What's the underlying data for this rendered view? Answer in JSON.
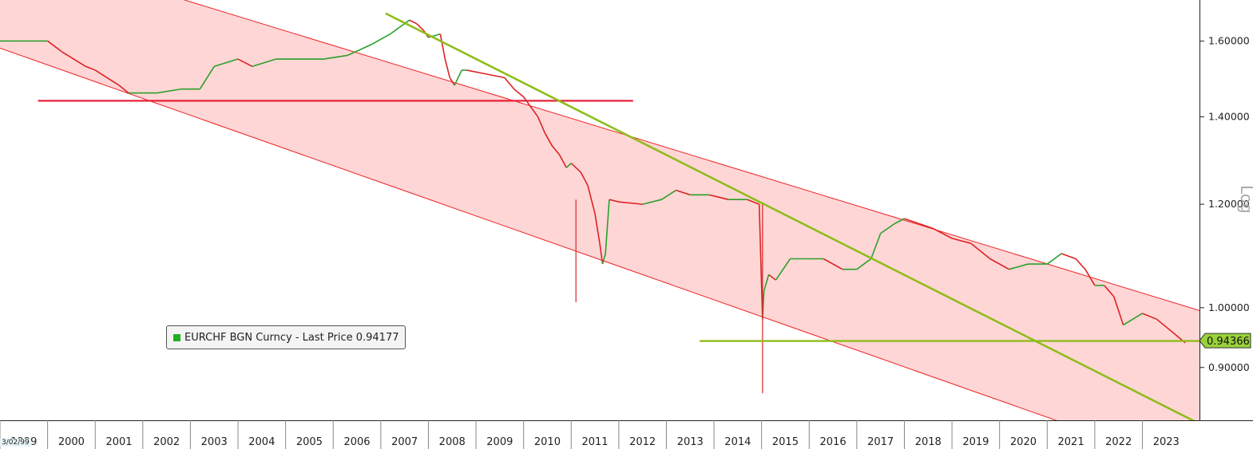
{
  "chart_data": {
    "type": "line",
    "title": "",
    "legend": {
      "label": "EURCHF BGN Curncy - Last Price 0.94177",
      "color": "#22b022",
      "placement": "bottom-left"
    },
    "last_value_tag": "0.94366",
    "y_axis": {
      "scale": "log",
      "side": "right",
      "scale_label": "Log",
      "ticks": [
        "1.60000",
        "1.40000",
        "1.20000",
        "1.00000",
        "0.90000"
      ],
      "ylim": [
        0.82,
        1.72
      ]
    },
    "x_axis": {
      "ticks": [
        "1999",
        "2000",
        "2001",
        "2002",
        "2003",
        "2004",
        "2005",
        "2006",
        "2007",
        "2008",
        "2009",
        "2010",
        "2011",
        "2012",
        "2013",
        "2014",
        "2015",
        "2016",
        "2017",
        "2018",
        "2019",
        "2020",
        "2021",
        "2022",
        "2023"
      ],
      "first_date_label": "3/02/99",
      "xlim": [
        1999.0,
        2024.2
      ]
    },
    "series": [
      {
        "name": "",
        "x": [
          1999.0,
          1999.5,
          2000.0,
          2000.3,
          2000.8,
          2001.0,
          2001.5,
          2001.7,
          2001.9,
          2002.3,
          2002.8,
          2003.2,
          2003.5,
          2004.0,
          2004.3,
          2004.8,
          2005.3,
          2005.8,
          2006.3,
          2006.8,
          2007.2,
          2007.4,
          2007.6,
          2007.75,
          2007.9,
          2008.0,
          2008.25,
          2008.35,
          2008.45,
          2008.55,
          2008.7,
          2008.8,
          2009.2,
          2009.6,
          2009.8,
          2010.0,
          2010.3,
          2010.45,
          2010.6,
          2010.75,
          2010.9,
          2011.0,
          2011.2,
          2011.35,
          2011.5,
          2011.6,
          2011.66,
          2011.72,
          2011.8,
          2012.0,
          2012.5,
          2012.9,
          2013.2,
          2013.5,
          2013.9,
          2014.3,
          2014.7,
          2014.95,
          2015.02,
          2015.05,
          2015.15,
          2015.3,
          2015.6,
          2015.9,
          2016.3,
          2016.7,
          2017.0,
          2017.3,
          2017.5,
          2017.8,
          2018.0,
          2018.3,
          2018.6,
          2019.0,
          2019.4,
          2019.8,
          2020.2,
          2020.6,
          2021.0,
          2021.3,
          2021.6,
          2021.8,
          2022.0,
          2022.2,
          2022.4,
          2022.6,
          2022.8,
          2023.0,
          2023.3,
          2023.6,
          2023.9
        ],
        "y": [
          1.6,
          1.6,
          1.6,
          1.57,
          1.53,
          1.52,
          1.48,
          1.46,
          1.46,
          1.46,
          1.47,
          1.47,
          1.53,
          1.55,
          1.53,
          1.55,
          1.55,
          1.55,
          1.56,
          1.59,
          1.62,
          1.64,
          1.66,
          1.65,
          1.63,
          1.61,
          1.62,
          1.55,
          1.5,
          1.48,
          1.52,
          1.52,
          1.51,
          1.5,
          1.47,
          1.45,
          1.4,
          1.36,
          1.33,
          1.31,
          1.28,
          1.29,
          1.27,
          1.24,
          1.18,
          1.12,
          1.08,
          1.1,
          1.21,
          1.205,
          1.2,
          1.21,
          1.23,
          1.22,
          1.22,
          1.21,
          1.21,
          1.2,
          0.98,
          1.03,
          1.06,
          1.05,
          1.09,
          1.09,
          1.09,
          1.07,
          1.07,
          1.09,
          1.14,
          1.16,
          1.17,
          1.16,
          1.15,
          1.13,
          1.12,
          1.09,
          1.07,
          1.08,
          1.08,
          1.1,
          1.09,
          1.07,
          1.04,
          1.04,
          1.02,
          0.97,
          0.98,
          0.99,
          0.98,
          0.96,
          0.94
        ]
      }
    ],
    "annotations": {
      "channel_upper": {
        "x": [
          1999.0,
          2024.2
        ],
        "y": [
          1.9,
          0.995
        ]
      },
      "channel_lower": {
        "x": [
          1999.0,
          2024.2
        ],
        "y": [
          1.58,
          0.75
        ]
      },
      "support_line_red": {
        "x": [
          1999.8,
          2012.3
        ],
        "y": [
          1.44,
          1.44
        ]
      },
      "downtrend_line_green": {
        "x": [
          2007.1,
          2024.2
        ],
        "y": [
          1.68,
          0.815
        ]
      },
      "support_line_green": {
        "x": [
          2013.7,
          2024.2
        ],
        "y": [
          0.943,
          0.943
        ]
      }
    },
    "colors": {
      "channel_fill": "#ffd6d6",
      "channel_edge": "#ee2222",
      "red_line": "#e8213a",
      "green_line": "#8fbc1a",
      "price_up": "#2aa02a",
      "price_down": "#dd2222",
      "tag_bg": "#99d13a"
    }
  }
}
